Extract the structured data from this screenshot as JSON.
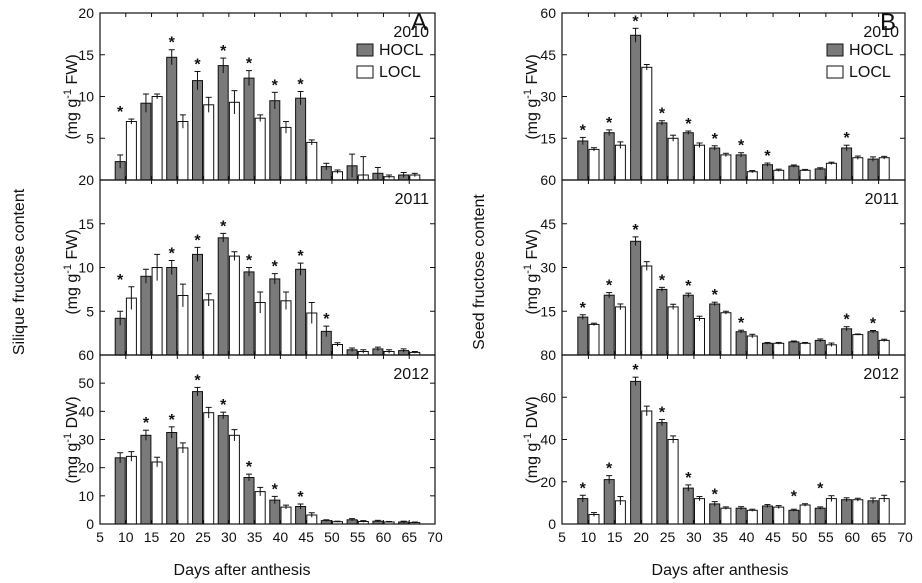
{
  "figure": {
    "xlabel": "Days after anthesis",
    "left_ylabel": "Silique fructose content",
    "right_ylabel": "Seed fructose content",
    "series_names": [
      "HOCL",
      "LOCL"
    ],
    "colors": {
      "HOCL": "#7a7a7a",
      "LOCL": "#ffffff",
      "axis": "#111111"
    }
  },
  "chart_data": [
    {
      "panel": "A",
      "year": "2010",
      "type": "bar",
      "unit": "(mg g-1 FW)",
      "x": [
        10,
        15,
        20,
        25,
        30,
        35,
        40,
        45,
        50,
        55,
        60,
        65
      ],
      "xlim": [
        5,
        70
      ],
      "ylim": [
        0,
        20
      ],
      "yticks": [
        5,
        10,
        15,
        20
      ],
      "legend": "top-right",
      "series": [
        {
          "name": "HOCL",
          "values": [
            2.2,
            9.2,
            14.7,
            11.9,
            13.7,
            12.2,
            9.5,
            9.8,
            1.6,
            1.7,
            0.8,
            0.6
          ],
          "errors": [
            0.8,
            1.1,
            0.9,
            1.1,
            0.9,
            0.9,
            1.0,
            0.8,
            0.4,
            1.4,
            0.7,
            0.3
          ]
        },
        {
          "name": "LOCL",
          "values": [
            7.0,
            10.0,
            7.0,
            9.0,
            9.3,
            7.4,
            6.3,
            4.5,
            1.0,
            0.6,
            0.4,
            0.6
          ],
          "errors": [
            0.3,
            0.3,
            0.8,
            0.9,
            1.4,
            0.4,
            0.7,
            0.3,
            0.2,
            2.2,
            0.2,
            0.2
          ]
        }
      ],
      "significant": [
        10,
        20,
        25,
        30,
        35,
        40,
        45
      ]
    },
    {
      "panel": "A",
      "year": "2011",
      "type": "bar",
      "unit": "(mg g-1 FW)",
      "x": [
        10,
        15,
        20,
        25,
        30,
        35,
        40,
        45,
        50,
        55,
        60,
        65
      ],
      "xlim": [
        5,
        70
      ],
      "ylim": [
        0,
        20
      ],
      "yticks": [
        5,
        10,
        15,
        20
      ],
      "series": [
        {
          "name": "HOCL",
          "values": [
            4.2,
            9.0,
            10.0,
            11.5,
            13.4,
            9.5,
            8.7,
            9.8,
            2.7,
            0.6,
            0.7,
            0.5
          ],
          "errors": [
            0.8,
            0.8,
            0.8,
            0.8,
            0.5,
            0.5,
            0.6,
            0.7,
            0.6,
            0.2,
            0.2,
            0.2
          ]
        },
        {
          "name": "LOCL",
          "values": [
            6.5,
            10.0,
            6.8,
            6.3,
            11.3,
            6.0,
            6.2,
            4.8,
            1.2,
            0.4,
            0.4,
            0.3
          ],
          "errors": [
            1.3,
            1.5,
            1.3,
            0.7,
            0.5,
            1.2,
            1.0,
            1.2,
            0.2,
            0.2,
            0.2,
            0.1
          ]
        }
      ],
      "significant": [
        10,
        20,
        25,
        30,
        35,
        40,
        45,
        50
      ]
    },
    {
      "panel": "A",
      "year": "2012",
      "type": "bar",
      "unit": "(mg g-1 DW)",
      "x": [
        10,
        15,
        20,
        25,
        30,
        35,
        40,
        45,
        50,
        55,
        60,
        65
      ],
      "xlim": [
        5,
        70
      ],
      "ylim": [
        0,
        60
      ],
      "yticks": [
        0,
        10,
        20,
        30,
        40,
        50,
        60
      ],
      "series": [
        {
          "name": "HOCL",
          "values": [
            23.5,
            31.5,
            32.5,
            47.0,
            38.5,
            16.5,
            8.5,
            6.2,
            1.2,
            1.5,
            1.0,
            0.7
          ],
          "errors": [
            1.8,
            1.8,
            2.0,
            1.5,
            1.2,
            1.2,
            1.3,
            0.9,
            0.3,
            0.4,
            0.3,
            0.3
          ]
        },
        {
          "name": "LOCL",
          "values": [
            24.0,
            22.0,
            27.0,
            39.5,
            31.5,
            11.5,
            6.0,
            3.2,
            0.8,
            0.9,
            0.7,
            0.5
          ],
          "errors": [
            1.7,
            1.7,
            1.8,
            1.9,
            2.0,
            1.5,
            0.7,
            0.8,
            0.2,
            0.3,
            0.2,
            0.2
          ]
        }
      ],
      "significant": [
        15,
        20,
        25,
        30,
        35,
        40,
        45
      ]
    },
    {
      "panel": "B",
      "year": "2010",
      "type": "bar",
      "unit": "(mg g-1 FW)",
      "x": [
        10,
        15,
        20,
        25,
        30,
        35,
        40,
        45,
        50,
        55,
        60,
        65
      ],
      "xlim": [
        5,
        70
      ],
      "ylim": [
        0,
        60
      ],
      "yticks": [
        15,
        30,
        45,
        60
      ],
      "legend": "top-right",
      "series": [
        {
          "name": "HOCL",
          "values": [
            14.0,
            17.0,
            52.0,
            20.5,
            17.0,
            11.5,
            9.0,
            5.5,
            5.0,
            4.0,
            11.5,
            7.5
          ],
          "errors": [
            1.3,
            1.0,
            2.5,
            0.8,
            0.6,
            0.8,
            0.8,
            0.6,
            0.4,
            0.4,
            1.0,
            0.8
          ]
        },
        {
          "name": "LOCL",
          "values": [
            11.0,
            12.5,
            40.5,
            15.0,
            12.5,
            9.0,
            3.0,
            3.5,
            3.5,
            6.0,
            8.0,
            8.0
          ],
          "errors": [
            0.6,
            1.2,
            1.0,
            1.1,
            0.8,
            0.6,
            0.4,
            0.4,
            0.3,
            0.4,
            0.6,
            0.5
          ]
        }
      ],
      "significant": [
        10,
        15,
        20,
        25,
        30,
        35,
        40,
        45,
        60
      ]
    },
    {
      "panel": "B",
      "year": "2011",
      "type": "bar",
      "unit": "(mg g-1 FW)",
      "x": [
        10,
        15,
        20,
        25,
        30,
        35,
        40,
        45,
        50,
        55,
        60,
        65
      ],
      "xlim": [
        5,
        70
      ],
      "ylim": [
        0,
        60
      ],
      "yticks": [
        15,
        30,
        45,
        60
      ],
      "series": [
        {
          "name": "HOCL",
          "values": [
            13.0,
            20.5,
            39.0,
            22.5,
            20.5,
            17.5,
            8.0,
            4.0,
            4.5,
            5.0,
            9.0,
            8.0
          ],
          "errors": [
            0.8,
            0.9,
            1.5,
            0.7,
            0.7,
            0.6,
            0.5,
            0.3,
            0.3,
            0.5,
            0.7,
            0.4
          ]
        },
        {
          "name": "LOCL",
          "values": [
            10.5,
            16.5,
            30.5,
            16.5,
            12.5,
            14.5,
            6.5,
            4.0,
            4.0,
            3.5,
            7.0,
            5.0
          ],
          "errors": [
            0.4,
            1.0,
            1.5,
            0.9,
            0.8,
            0.5,
            0.6,
            0.3,
            0.3,
            0.6,
            0.2,
            0.4
          ]
        }
      ],
      "significant": [
        10,
        15,
        20,
        25,
        30,
        35,
        40,
        60,
        65
      ]
    },
    {
      "panel": "B",
      "year": "2012",
      "type": "bar",
      "unit": "(mg g-1 DW)",
      "x": [
        10,
        15,
        20,
        25,
        30,
        35,
        40,
        45,
        50,
        55,
        60,
        65
      ],
      "xlim": [
        5,
        70
      ],
      "ylim": [
        0,
        80
      ],
      "yticks": [
        0,
        20,
        40,
        60,
        80
      ],
      "series": [
        {
          "name": "HOCL",
          "values": [
            12.0,
            21.0,
            67.5,
            48.0,
            17.0,
            9.5,
            7.5,
            8.5,
            6.5,
            7.5,
            11.5,
            11.0
          ],
          "errors": [
            1.6,
            1.9,
            2.0,
            1.5,
            1.5,
            1.1,
            0.7,
            0.7,
            0.5,
            0.6,
            0.9,
            1.3
          ]
        },
        {
          "name": "LOCL",
          "values": [
            4.5,
            11.0,
            53.5,
            40.0,
            12.0,
            7.5,
            6.5,
            8.0,
            9.0,
            12.0,
            11.5,
            12.0
          ],
          "errors": [
            0.9,
            2.0,
            2.3,
            1.7,
            1.0,
            0.6,
            0.5,
            0.7,
            0.6,
            1.4,
            0.7,
            1.6
          ]
        }
      ],
      "significant": [
        10,
        15,
        20,
        25,
        30,
        35,
        50,
        55
      ]
    }
  ]
}
